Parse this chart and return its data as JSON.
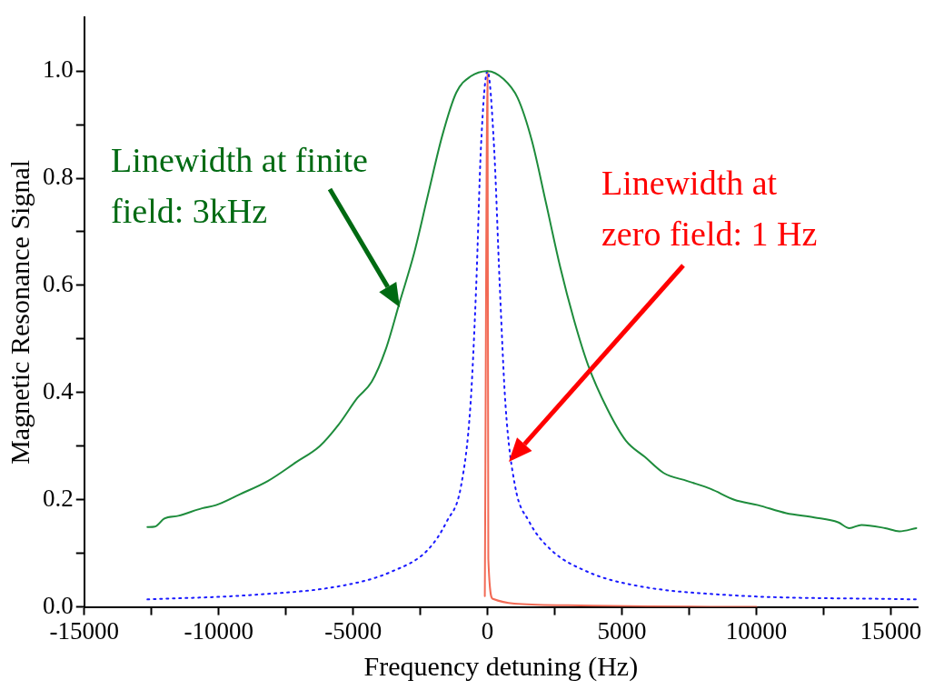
{
  "chart_data": {
    "type": "line",
    "xlabel": "Frequency detuning (Hz)",
    "ylabel": "Magnetic Resonance Signal",
    "xlim": [
      -15000,
      16000
    ],
    "xticks": [
      -15000,
      {
        "value": -12500,
        "label": null
      },
      -10000,
      {
        "value": -7500,
        "label": null
      },
      -5000,
      {
        "value": -2500,
        "label": null
      },
      0,
      {
        "value": 2500,
        "label": null
      },
      5000,
      {
        "value": 7500,
        "label": null
      },
      10000,
      {
        "value": 12500,
        "label": null
      },
      15000
    ],
    "ylim": [
      0,
      1.1
    ],
    "yticks": [
      {
        "value": 0,
        "label": "0.0"
      },
      {
        "value": 0.1,
        "label": null
      },
      0.2,
      {
        "value": 0.3,
        "label": null
      },
      0.4,
      {
        "value": 0.5,
        "label": null
      },
      0.6,
      {
        "value": 0.7,
        "label": null
      },
      0.8,
      {
        "value": 0.9,
        "label": null
      },
      {
        "value": 1,
        "label": "1.0"
      }
    ],
    "grid": false,
    "legend": false,
    "marker": "none",
    "series": [
      {
        "color": "#1e8c3c",
        "line_style": "solid",
        "x": [
          -12650,
          -12370,
          -12020,
          -11500,
          -10620,
          -10100,
          -9220,
          -8170,
          -7120,
          -6240,
          -5540,
          -4840,
          -4310,
          -3790,
          -3260,
          -2730,
          -2210,
          -1680,
          -1160,
          -630,
          0,
          600,
          1120,
          1650,
          2170,
          2700,
          3220,
          3750,
          4450,
          5150,
          5850,
          6550,
          7430,
          8310,
          9180,
          10060,
          11110,
          12160,
          13040,
          13460,
          13910,
          14790,
          15320,
          15950
        ],
        "values": [
          0.149,
          0.15,
          0.165,
          0.17,
          0.184,
          0.19,
          0.21,
          0.235,
          0.27,
          0.3,
          0.34,
          0.39,
          0.42,
          0.48,
          0.57,
          0.66,
          0.77,
          0.88,
          0.96,
          0.99,
          1.0,
          0.985,
          0.95,
          0.87,
          0.755,
          0.635,
          0.535,
          0.45,
          0.37,
          0.31,
          0.28,
          0.25,
          0.235,
          0.22,
          0.2,
          0.19,
          0.175,
          0.167,
          0.158,
          0.147,
          0.153,
          0.147,
          0.141,
          0.147
        ]
      },
      {
        "color": "#1a1aff",
        "line_style": "dotted",
        "x": [
          -12650,
          -8870,
          -5360,
          -3610,
          -2210,
          -1510,
          -980,
          -630,
          -420,
          -245,
          0,
          245,
          455,
          665,
          1020,
          1540,
          2350,
          3750,
          5500,
          9010,
          15950
        ],
        "values": [
          0.014,
          0.022,
          0.04,
          0.065,
          0.107,
          0.16,
          0.227,
          0.38,
          0.6,
          0.857,
          1.0,
          0.857,
          0.6,
          0.38,
          0.227,
          0.16,
          0.107,
          0.065,
          0.04,
          0.022,
          0.014
        ]
      },
      {
        "color": "#f26a55",
        "line_style": "solid",
        "x": [
          -100,
          0,
          30,
          200,
          1000,
          3000,
          6000,
          10000
        ],
        "values": [
          0.02,
          1.0,
          0.09,
          0.015,
          0.006,
          0.003,
          0.001,
          0
        ]
      }
    ],
    "annotations": [
      {
        "text": "Linewidth at finite field: 3kHz",
        "x": -3260,
        "y": 0.56
      },
      "Linewidth at zero field: 1 Hz"
    ]
  }
}
